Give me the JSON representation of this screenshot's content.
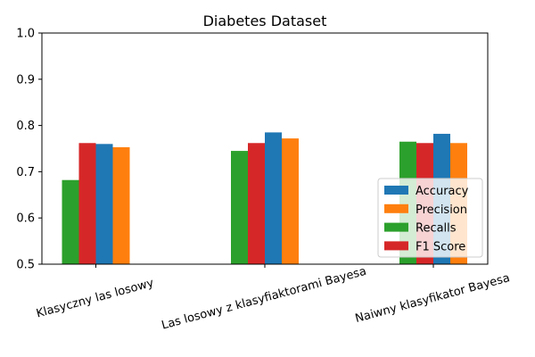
{
  "chart_data": {
    "type": "bar",
    "title": "Diabetes Dataset",
    "xlabel": "",
    "ylabel": "",
    "ylim": [
      0.5,
      1.0
    ],
    "yticks": [
      "0.5",
      "0.6",
      "0.7",
      "0.8",
      "0.9",
      "1.0"
    ],
    "categories": [
      "Klasyczny las losowy",
      "Las losowy z klasyfiaktorami Bayesa",
      "Naiwny klasyfikator Bayesa"
    ],
    "series": [
      {
        "name": "Recalls",
        "color": "#2ca02c",
        "values": [
          0.682,
          0.745,
          0.765
        ]
      },
      {
        "name": "F1 Score",
        "color": "#d62728",
        "values": [
          0.762,
          0.762,
          0.762
        ]
      },
      {
        "name": "Accuracy",
        "color": "#1f77b4",
        "values": [
          0.76,
          0.785,
          0.782
        ]
      },
      {
        "name": "Precision",
        "color": "#ff7f0e",
        "values": [
          0.753,
          0.772,
          0.762
        ]
      }
    ],
    "legend_order": [
      "Accuracy",
      "Precision",
      "Recalls",
      "F1 Score"
    ],
    "legend_position": "bottom-right",
    "grid": false
  }
}
